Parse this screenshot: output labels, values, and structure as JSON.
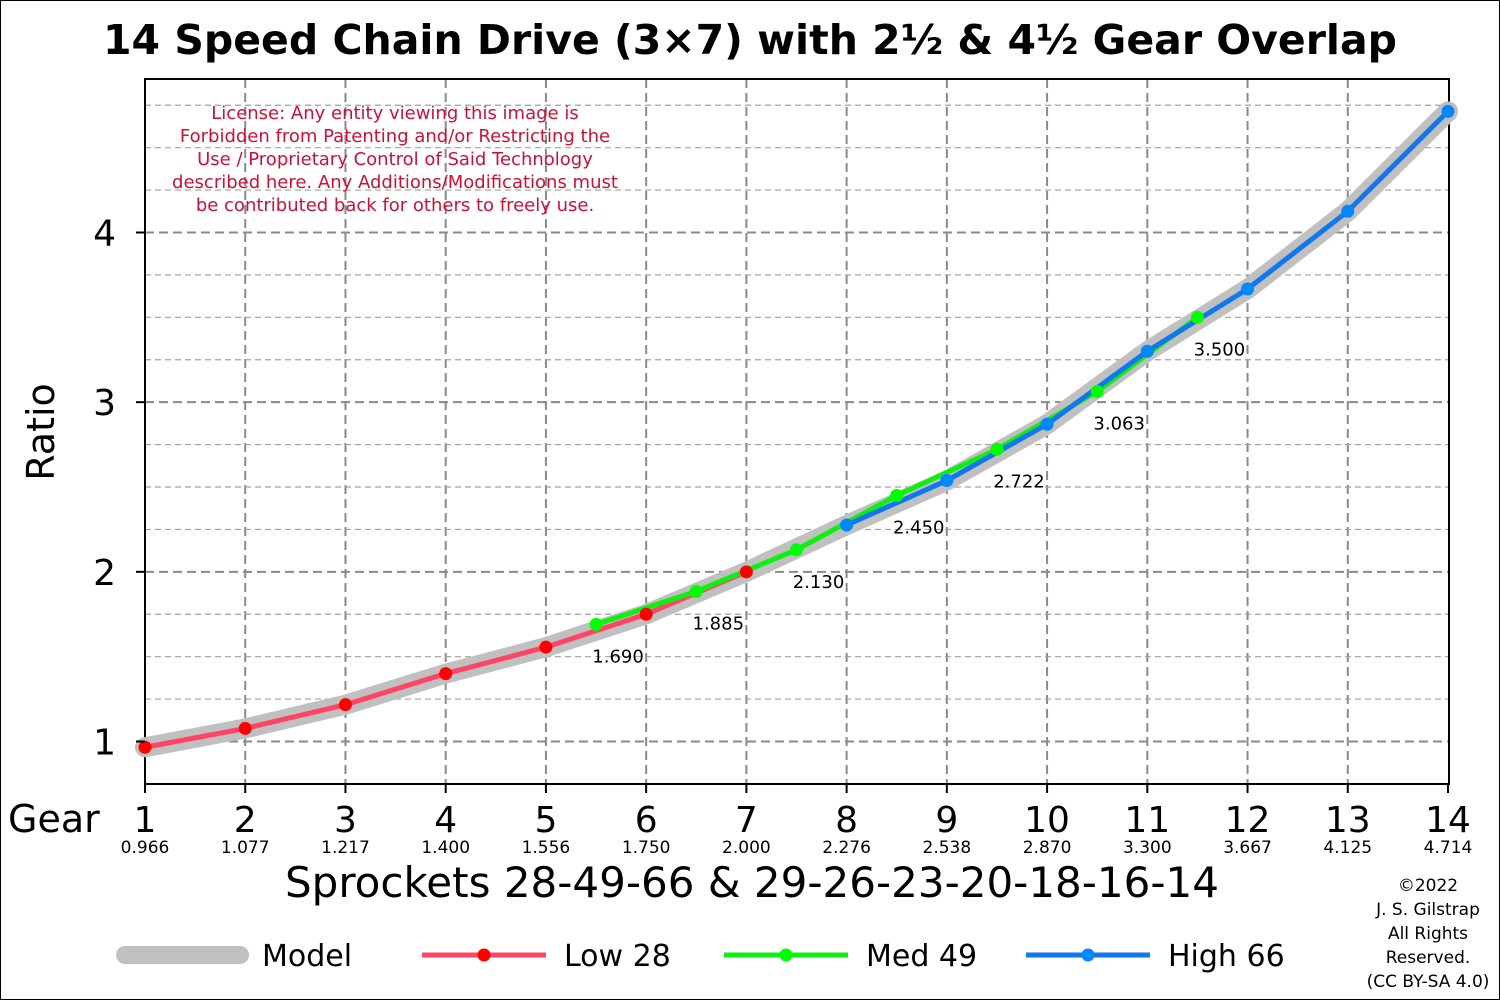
{
  "chart_data": {
    "type": "line",
    "title": "14 Speed Chain Drive (3×7) with 2½ & 4½ Gear Overlap",
    "ylabel": "Ratio",
    "xlabel_prefix": "Gear",
    "xlabel": "Sprockets  28-49-66  &  29-26-23-20-18-16-14",
    "xlim": [
      1,
      14
    ],
    "ylim": [
      0.75,
      4.9
    ],
    "yticks": [
      "1",
      "2",
      "3",
      "4"
    ],
    "grid": true,
    "gears": [
      "1",
      "2",
      "3",
      "4",
      "5",
      "6",
      "7",
      "8",
      "9",
      "10",
      "11",
      "12",
      "13",
      "14"
    ],
    "gear_ratios": [
      "0.966",
      "1.077",
      "1.217",
      "1.400",
      "1.556",
      "1.750",
      "2.000",
      "2.276",
      "2.538",
      "2.870",
      "3.300",
      "3.667",
      "4.125",
      "4.714"
    ],
    "series": [
      {
        "name": "Model",
        "color": "#c0c0c0",
        "x": [
          1,
          2,
          3,
          4,
          5,
          6,
          7,
          8,
          9,
          10,
          11,
          12,
          13,
          14
        ],
        "y": [
          0.966,
          1.077,
          1.217,
          1.4,
          1.556,
          1.75,
          2.0,
          2.276,
          2.538,
          2.87,
          3.3,
          3.667,
          4.125,
          4.714
        ]
      },
      {
        "name": "Low 28",
        "color": "#ff4466",
        "marker_color": "#ff0000",
        "x": [
          1,
          2,
          3,
          4,
          5,
          6,
          7
        ],
        "y": [
          0.966,
          1.077,
          1.217,
          1.4,
          1.556,
          1.75,
          2.0
        ]
      },
      {
        "name": "Med 49",
        "color": "#11ee11",
        "marker_color": "#00ff00",
        "x": [
          5.5,
          6.5,
          7.5,
          8.5,
          9.5,
          10.5,
          11.5
        ],
        "y": [
          1.69,
          1.885,
          2.13,
          2.45,
          2.722,
          3.063,
          3.5
        ]
      },
      {
        "name": "High 66",
        "color": "#1177ee",
        "marker_color": "#0088ff",
        "x": [
          8,
          9,
          10,
          11,
          12,
          13,
          14
        ],
        "y": [
          2.276,
          2.538,
          2.87,
          3.3,
          3.667,
          4.125,
          4.714
        ]
      }
    ],
    "data_labels": [
      {
        "x": 5.5,
        "y": 1.69,
        "text": "1.690"
      },
      {
        "x": 6.5,
        "y": 1.885,
        "text": "1.885"
      },
      {
        "x": 7.5,
        "y": 2.13,
        "text": "2.130"
      },
      {
        "x": 8.5,
        "y": 2.45,
        "text": "2.450"
      },
      {
        "x": 9.5,
        "y": 2.722,
        "text": "2.722"
      },
      {
        "x": 10.5,
        "y": 3.063,
        "text": "3.063"
      },
      {
        "x": 11.5,
        "y": 3.5,
        "text": "3.500"
      }
    ],
    "annotations": {
      "license": [
        "License: Any entity viewing this image is",
        "Forbidden from Patenting and/or Restricting the",
        "Use / Proprietary Control of Said Technology",
        "described here.  Any Additions/Modifications must",
        "be contributed back for others to freely use."
      ],
      "copyright": [
        "©2022",
        "J. S. Gilstrap",
        "All Rights",
        "Reserved.",
        "(CC BY-SA 4.0)"
      ]
    },
    "legend": {
      "placement": "bottom",
      "entries": [
        "Model",
        "Low 28",
        "Med 49",
        "High 66"
      ]
    }
  }
}
